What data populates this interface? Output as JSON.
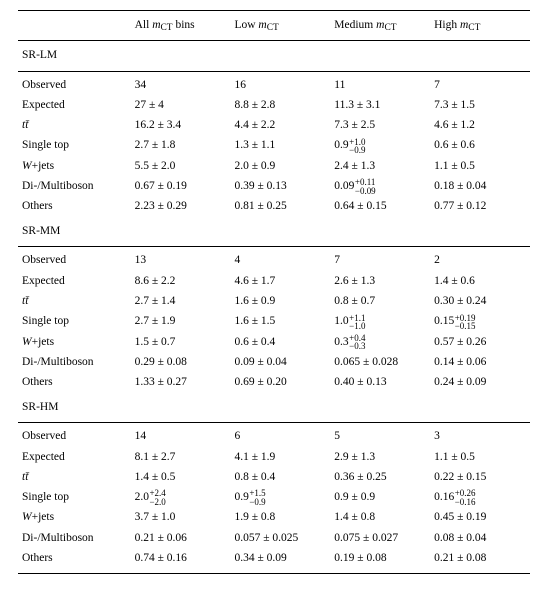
{
  "columns": {
    "c0": "",
    "c1_pre": "All ",
    "c1_var": "m",
    "c1_sub": "CT",
    "c1_post": " bins",
    "c2_pre": "Low ",
    "c2_var": "m",
    "c2_sub": "CT",
    "c3_pre": "Medium ",
    "c3_var": "m",
    "c3_sub": "CT",
    "c4_pre": "High ",
    "c4_var": "m",
    "c4_sub": "CT"
  },
  "labels": {
    "observed": "Observed",
    "expected": "Expected",
    "tt": "t",
    "tt_bar": "t̄",
    "singletop": "Single top",
    "wjets_pre": "W",
    "wjets_post": "+jets",
    "diboson": "Di-/Multiboson",
    "others": "Others"
  },
  "sections": [
    {
      "name": "SR-LM",
      "rows": {
        "observed": [
          "34",
          "16",
          "11",
          "7"
        ],
        "expected": [
          "27 ± 4",
          "8.8 ± 2.8",
          "11.3 ± 3.1",
          "7.3 ± 1.5"
        ],
        "tt": [
          "16.2 ± 3.4",
          "4.4 ± 2.2",
          "7.3 ± 2.5",
          "4.6 ± 1.2"
        ],
        "singletop": [
          "2.7 ± 1.8",
          "1.3 ± 1.1",
          {
            "base": "0.9",
            "up": "+1.0",
            "dn": "−0.9"
          },
          "0.6 ± 0.6"
        ],
        "wjets": [
          "5.5 ± 2.0",
          "2.0 ± 0.9",
          "2.4 ± 1.3",
          "1.1 ± 0.5"
        ],
        "diboson": [
          "0.67 ± 0.19",
          "0.39 ± 0.13",
          {
            "base": "0.09",
            "up": "+0.11",
            "dn": "−0.09"
          },
          "0.18 ± 0.04"
        ],
        "others": [
          "2.23 ± 0.29",
          "0.81 ± 0.25",
          "0.64 ± 0.15",
          "0.77 ± 0.12"
        ]
      }
    },
    {
      "name": "SR-MM",
      "rows": {
        "observed": [
          "13",
          "4",
          "7",
          "2"
        ],
        "expected": [
          "8.6 ± 2.2",
          "4.6 ± 1.7",
          "2.6 ± 1.3",
          "1.4 ± 0.6"
        ],
        "tt": [
          "2.7 ± 1.4",
          "1.6 ± 0.9",
          "0.8 ± 0.7",
          "0.30 ± 0.24"
        ],
        "singletop": [
          "2.7 ± 1.9",
          "1.6 ± 1.5",
          {
            "base": "1.0",
            "up": "+1.1",
            "dn": "−1.0"
          },
          {
            "base": "0.15",
            "up": "+0.19",
            "dn": "−0.15"
          }
        ],
        "wjets": [
          "1.5 ± 0.7",
          "0.6 ± 0.4",
          {
            "base": "0.3",
            "up": "+0.4",
            "dn": "−0.3"
          },
          "0.57 ± 0.26"
        ],
        "diboson": [
          "0.29 ± 0.08",
          "0.09 ± 0.04",
          "0.065 ± 0.028",
          "0.14 ± 0.06"
        ],
        "others": [
          "1.33 ± 0.27",
          "0.69 ± 0.20",
          "0.40 ± 0.13",
          "0.24 ± 0.09"
        ]
      }
    },
    {
      "name": "SR-HM",
      "rows": {
        "observed": [
          "14",
          "6",
          "5",
          "3"
        ],
        "expected": [
          "8.1 ± 2.7",
          "4.1 ± 1.9",
          "2.9 ± 1.3",
          "1.1 ± 0.5"
        ],
        "tt": [
          "1.4 ± 0.5",
          "0.8 ± 0.4",
          "0.36 ± 0.25",
          "0.22 ± 0.15"
        ],
        "singletop": [
          {
            "base": "2.0",
            "up": "+2.4",
            "dn": "−2.0"
          },
          {
            "base": "0.9",
            "up": "+1.5",
            "dn": "−0.9"
          },
          "0.9 ± 0.9",
          {
            "base": "0.16",
            "up": "+0.26",
            "dn": "−0.16"
          }
        ],
        "wjets": [
          "3.7 ± 1.0",
          "1.9 ± 0.8",
          "1.4 ± 0.8",
          "0.45 ± 0.19"
        ],
        "diboson": [
          "0.21 ± 0.06",
          "0.057 ± 0.025",
          "0.075 ± 0.027",
          "0.08 ± 0.04"
        ],
        "others": [
          "0.74 ± 0.16",
          "0.34 ± 0.09",
          "0.19 ± 0.08",
          "0.21 ± 0.08"
        ]
      }
    }
  ]
}
